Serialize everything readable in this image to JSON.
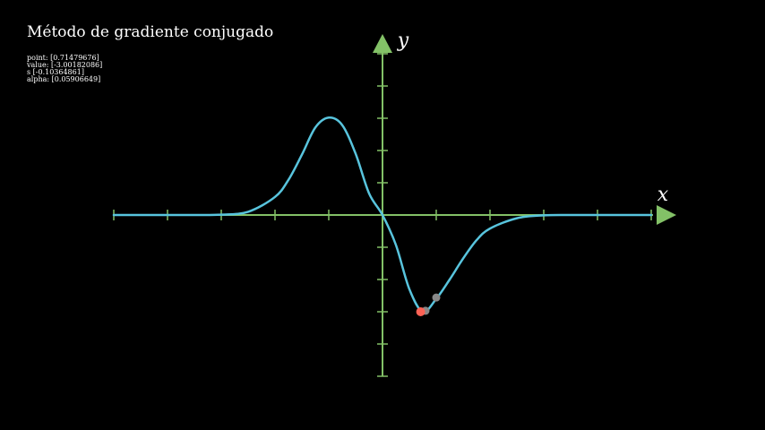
{
  "title": "Método de gradiente conjugado",
  "readout": [
    "point: [0.71479676]",
    "value: [-3.00182086]",
    "s [-0.10364861]",
    "alpha: [0.05906649]"
  ],
  "colors": {
    "background": "#000000",
    "axis": "#83c167",
    "curve": "#58c4dd",
    "current_point": "#fc6255",
    "history_point": "#888888",
    "text": "#ffffff"
  },
  "chart_data": {
    "type": "line",
    "title": "Método de gradiente conjugado",
    "xlabel": "x",
    "ylabel": "y",
    "xlim": [
      -5,
      5
    ],
    "ylim": [
      -5,
      5
    ],
    "grid": false,
    "x": [
      -5,
      -4.5,
      -4,
      -3.5,
      -3,
      -2.5,
      -2,
      -1.75,
      -1.5,
      -1.25,
      -1,
      -0.75,
      -0.5,
      -0.25,
      0,
      0.25,
      0.5,
      0.75,
      1,
      1.25,
      1.5,
      1.75,
      2,
      2.5,
      3,
      3.5,
      4,
      4.5,
      5
    ],
    "series": [
      {
        "values": [
          0,
          0,
          0,
          0,
          0.01,
          0.1,
          0.56,
          1.09,
          1.87,
          2.71,
          3.02,
          2.79,
          1.9,
          0.67,
          0,
          -0.93,
          -2.3,
          -3.0,
          -2.6,
          -2.0,
          -1.35,
          -0.78,
          -0.42,
          -0.1,
          -0.01,
          0,
          0,
          0,
          0
        ]
      }
    ],
    "markers": [
      {
        "role": "current",
        "x": 0.71,
        "y": -3.0
      },
      {
        "role": "previous",
        "x": 0.8,
        "y": -2.97
      },
      {
        "role": "previous",
        "x": 1.0,
        "y": -2.56
      }
    ]
  }
}
